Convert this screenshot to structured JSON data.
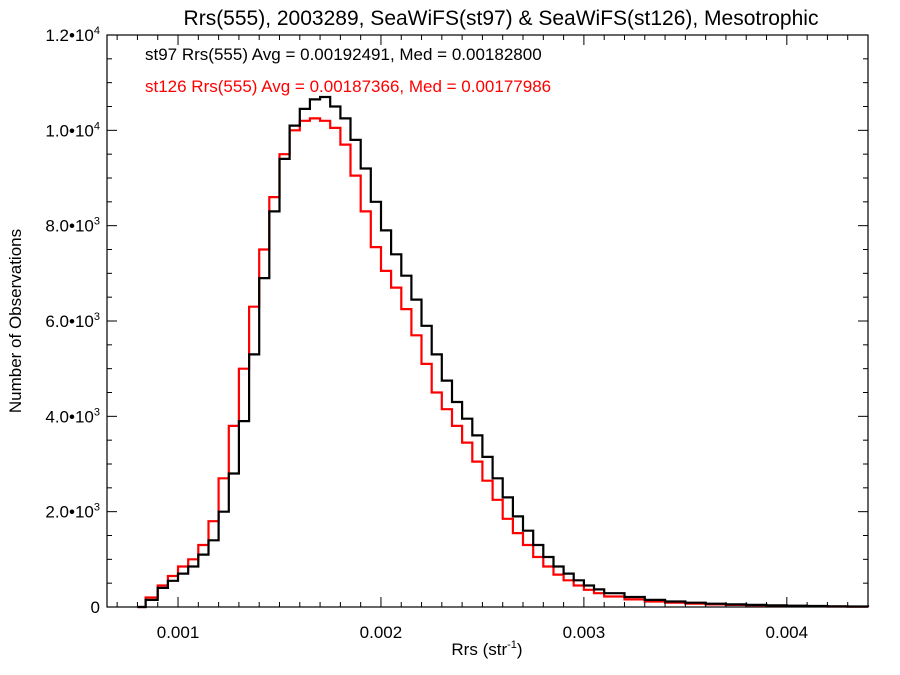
{
  "chart_data": {
    "type": "line",
    "step": true,
    "title": "Rrs(555), 2003289, SeaWiFS(st97) & SeaWiFS(st126), Mesotrophic",
    "xlabel": "Rrs (str",
    "xlabel_sup": "-1",
    "xlabel_end": ")",
    "ylabel": "Number of Observations",
    "xlim": [
      0.00065,
      0.0044
    ],
    "ylim": [
      0,
      12000
    ],
    "grid": false,
    "x_ticks": [
      {
        "value": 0.001,
        "label": "0.001"
      },
      {
        "value": 0.002,
        "label": "0.002"
      },
      {
        "value": 0.003,
        "label": "0.003"
      },
      {
        "value": 0.004,
        "label": "0.004"
      }
    ],
    "y_ticks": [
      {
        "value": 0,
        "mant": "0",
        "exp": ""
      },
      {
        "value": 2000,
        "mant": "2.0•10",
        "exp": "3"
      },
      {
        "value": 4000,
        "mant": "4.0•10",
        "exp": "3"
      },
      {
        "value": 6000,
        "mant": "6.0•10",
        "exp": "3"
      },
      {
        "value": 8000,
        "mant": "8.0•10",
        "exp": "3"
      },
      {
        "value": 10000,
        "mant": "1.0•10",
        "exp": "4"
      },
      {
        "value": 12000,
        "mant": "1.2•10",
        "exp": "4"
      }
    ],
    "annotations": [
      {
        "text": "st97 Rrs(555) Avg = 0.00192491, Med = 0.00182800",
        "color": "#000000"
      },
      {
        "text": "st126 Rrs(555) Avg = 0.00187366, Med = 0.00177986",
        "color": "#ff0000"
      }
    ],
    "series": [
      {
        "color": "#000000",
        "x": [
          0.0008,
          0.00084,
          0.0009,
          0.00095,
          0.001,
          0.00105,
          0.0011,
          0.00115,
          0.0012,
          0.00125,
          0.0013,
          0.00135,
          0.0014,
          0.00145,
          0.0015,
          0.00155,
          0.0016,
          0.00165,
          0.0017,
          0.00175,
          0.0018,
          0.00185,
          0.0019,
          0.00195,
          0.002,
          0.00205,
          0.0021,
          0.00215,
          0.0022,
          0.00225,
          0.0023,
          0.00235,
          0.0024,
          0.00245,
          0.0025,
          0.00255,
          0.0026,
          0.00265,
          0.0027,
          0.00275,
          0.0028,
          0.00285,
          0.0029,
          0.00295,
          0.003,
          0.00305,
          0.0031,
          0.0032,
          0.0033,
          0.0034,
          0.0035,
          0.0036,
          0.0037,
          0.0038,
          0.0039,
          0.004,
          0.0041,
          0.0042,
          0.0043,
          0.0044
        ],
        "y": [
          0,
          150,
          400,
          550,
          700,
          850,
          1100,
          1400,
          2000,
          2800,
          3900,
          5300,
          6900,
          8300,
          9400,
          10100,
          10450,
          10650,
          10700,
          10500,
          10250,
          9800,
          9200,
          8500,
          7900,
          7400,
          6950,
          6450,
          5900,
          5300,
          4750,
          4300,
          3950,
          3600,
          3150,
          2700,
          2300,
          1900,
          1600,
          1300,
          1050,
          850,
          700,
          560,
          450,
          370,
          290,
          210,
          150,
          115,
          90,
          70,
          55,
          45,
          35,
          28,
          22,
          15,
          10,
          5
        ]
      },
      {
        "color": "#ff0000",
        "x": [
          0.0008,
          0.00084,
          0.0009,
          0.00095,
          0.001,
          0.00105,
          0.0011,
          0.00115,
          0.0012,
          0.00125,
          0.0013,
          0.00135,
          0.0014,
          0.00145,
          0.0015,
          0.00155,
          0.0016,
          0.00165,
          0.0017,
          0.00175,
          0.0018,
          0.00185,
          0.0019,
          0.00195,
          0.002,
          0.00205,
          0.0021,
          0.00215,
          0.0022,
          0.00225,
          0.0023,
          0.00235,
          0.0024,
          0.00245,
          0.0025,
          0.00255,
          0.0026,
          0.00265,
          0.0027,
          0.00275,
          0.0028,
          0.00285,
          0.0029,
          0.00295,
          0.003,
          0.00305,
          0.0031,
          0.0032,
          0.0033,
          0.0034,
          0.0035,
          0.0036,
          0.0037,
          0.0038,
          0.0039,
          0.004,
          0.0041,
          0.0042,
          0.0043,
          0.0044
        ],
        "y": [
          0,
          200,
          450,
          650,
          850,
          1000,
          1300,
          1800,
          2700,
          3800,
          5000,
          6300,
          7500,
          8600,
          9500,
          10000,
          10200,
          10250,
          10200,
          10050,
          9700,
          9050,
          8300,
          7550,
          7050,
          6700,
          6250,
          5700,
          5100,
          4500,
          4150,
          3800,
          3450,
          3050,
          2650,
          2250,
          1850,
          1550,
          1300,
          1050,
          850,
          680,
          560,
          450,
          360,
          290,
          220,
          160,
          115,
          90,
          70,
          55,
          45,
          35,
          28,
          22,
          16,
          10,
          6,
          3
        ]
      }
    ]
  }
}
